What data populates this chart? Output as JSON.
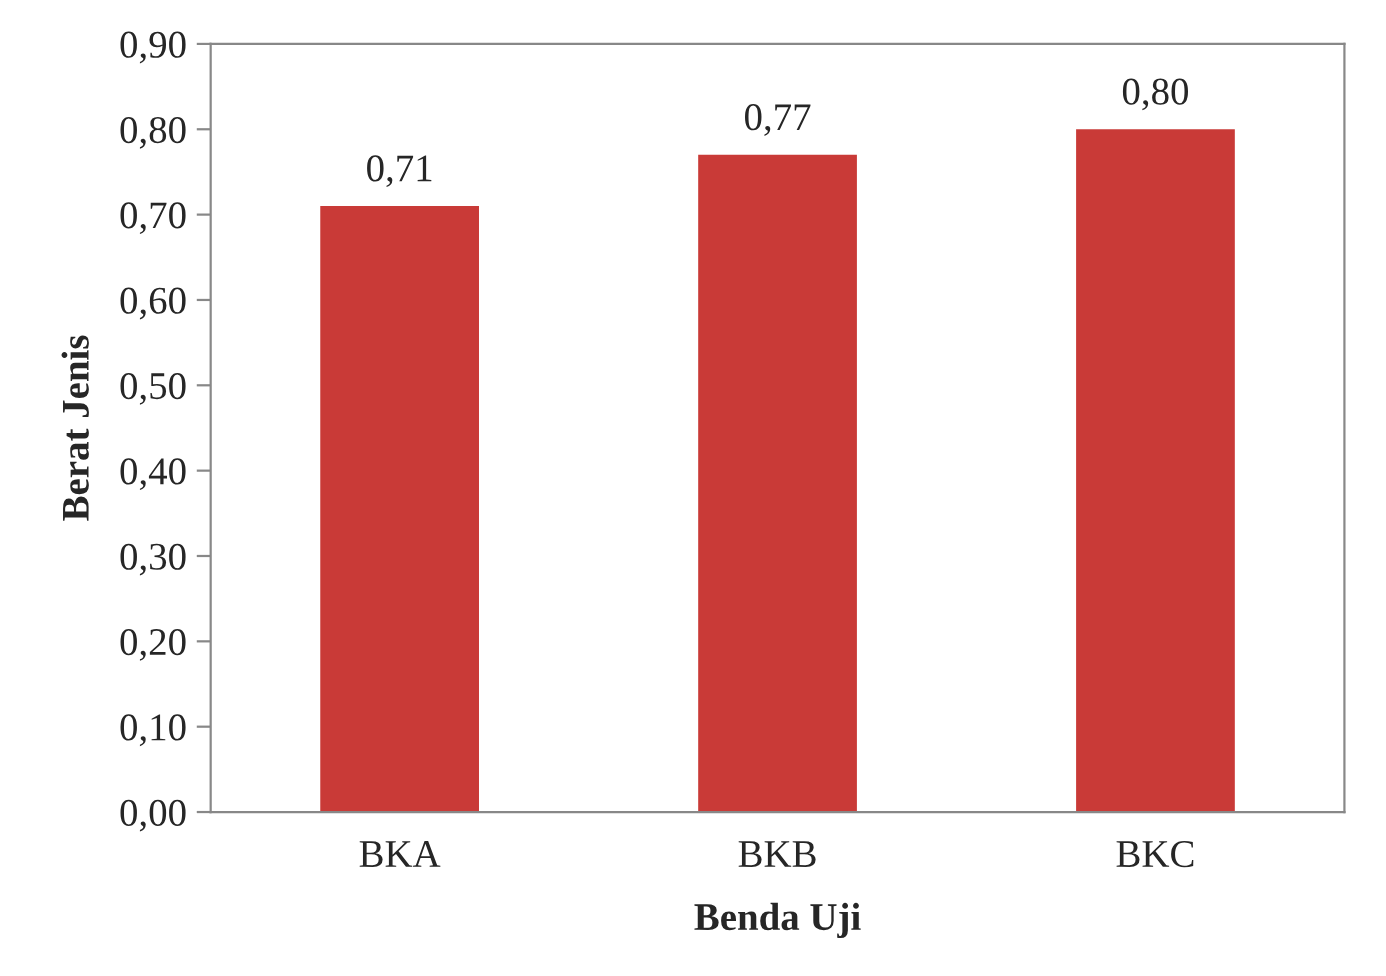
{
  "chart_data": {
    "type": "bar",
    "xlabel": "Benda Uji",
    "ylabel": "Berat Jenis",
    "categories": [
      "BKA",
      "BKB",
      "BKC"
    ],
    "values": [
      0.71,
      0.77,
      0.8
    ],
    "value_labels": [
      "0,71",
      "0,77",
      "0,80"
    ],
    "color": "#c93a37",
    "ylim": [
      0,
      0.9
    ],
    "yticks": [
      {
        "value": 0,
        "label": "0,00"
      },
      {
        "value": 0.1,
        "label": "0,10"
      },
      {
        "value": 0.2,
        "label": "0,20"
      },
      {
        "value": 0.3,
        "label": "0,30"
      },
      {
        "value": 0.4,
        "label": "0,40"
      },
      {
        "value": 0.5,
        "label": "0,50"
      },
      {
        "value": 0.6,
        "label": "0,60"
      },
      {
        "value": 0.7,
        "label": "0,70"
      },
      {
        "value": 0.8,
        "label": "0,80"
      },
      {
        "value": 0.9,
        "label": "0,90"
      }
    ],
    "grid": false,
    "legend": false
  }
}
